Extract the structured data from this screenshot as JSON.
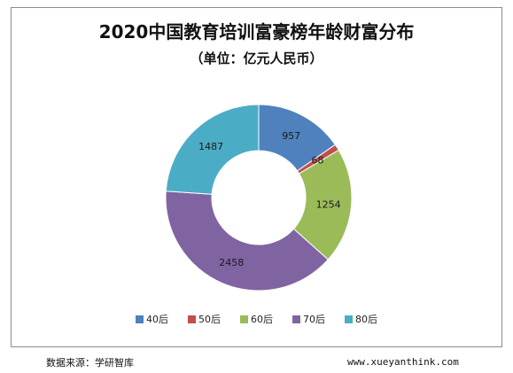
{
  "chart_data": {
    "type": "pie",
    "style": "donut",
    "title": "2020中国教育培训富豪榜年龄财富分布",
    "subtitle": "（单位：亿元人民币）",
    "categories": [
      "40后",
      "50后",
      "60后",
      "70后",
      "80后"
    ],
    "values": [
      957,
      68,
      1254,
      2458,
      1487
    ],
    "colors": [
      "#4f81bd",
      "#c0504d",
      "#9bbb59",
      "#8064a2",
      "#4bacc6"
    ],
    "legend_position": "bottom"
  },
  "footer": {
    "source": "数据来源：学研智库",
    "url": "www.xueyanthink.com"
  }
}
